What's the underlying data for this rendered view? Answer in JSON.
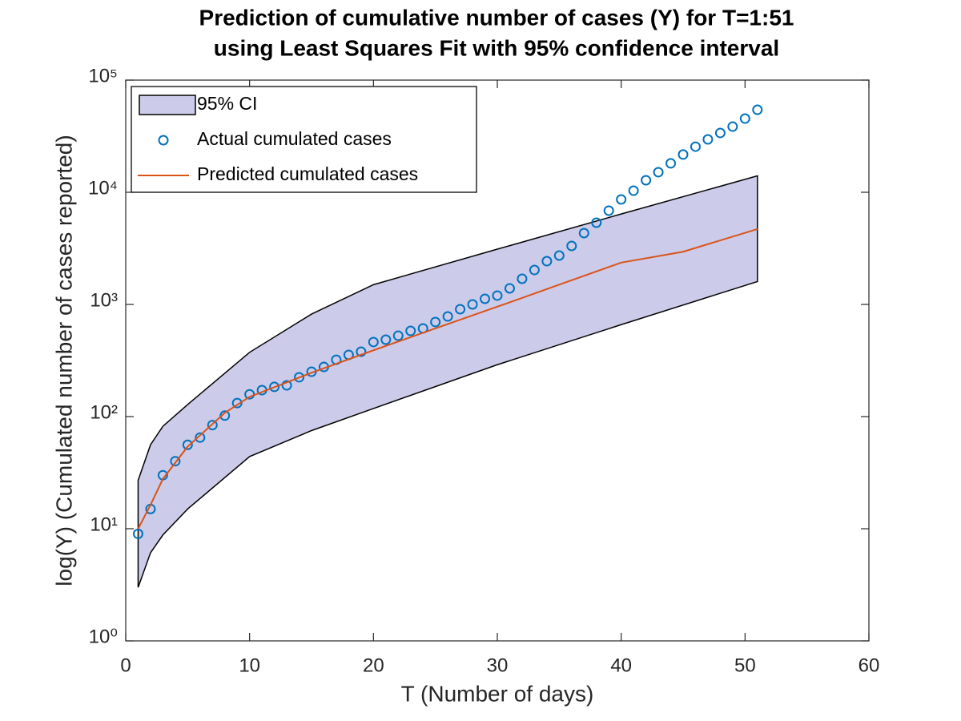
{
  "chart_data": {
    "type": "line",
    "title": [
      "Prediction of cumulative number of cases (Y) for T=1:51",
      "using Least Squares Fit with 95% confidence interval"
    ],
    "xlabel": "T (Number of days)",
    "ylabel": "log(Y) (Cumulated number of cases reported)",
    "xlim": [
      0,
      60
    ],
    "xticks": [
      0,
      10,
      20,
      30,
      40,
      50,
      60
    ],
    "ylim": [
      1,
      100000
    ],
    "yscale": "log",
    "yticks": [
      {
        "value": 1,
        "label": "10⁰"
      },
      {
        "value": 10,
        "label": "10¹"
      },
      {
        "value": 100,
        "label": "10²"
      },
      {
        "value": 1000,
        "label": "10³"
      },
      {
        "value": 10000,
        "label": "10⁴"
      },
      {
        "value": 100000,
        "label": "10⁵"
      }
    ],
    "legend": "upper left",
    "series": [
      {
        "name": "95% CI",
        "kind": "band",
        "color": "#ccccea",
        "x": [
          1,
          2,
          3,
          5,
          10,
          15,
          20,
          30,
          40,
          51
        ],
        "upper": [
          27,
          56,
          82,
          128,
          374,
          820,
          1500,
          3110,
          6400,
          14000
        ],
        "lower": [
          3,
          6.1,
          8.8,
          15,
          44,
          75,
          118,
          290,
          660,
          1600
        ]
      },
      {
        "name": "Actual cumulated cases",
        "kind": "scatter",
        "color": "#0072bd",
        "x": [
          1,
          2,
          3,
          4,
          5,
          6,
          7,
          8,
          9,
          10,
          11,
          12,
          13,
          14,
          15,
          16,
          17,
          18,
          19,
          20,
          21,
          22,
          23,
          24,
          25,
          26,
          27,
          28,
          29,
          30,
          31,
          32,
          33,
          34,
          35,
          36,
          37,
          38,
          39,
          40,
          41,
          42,
          43,
          44,
          45,
          46,
          47,
          48,
          49,
          50,
          51
        ],
        "values": [
          9,
          15,
          30,
          40,
          56,
          65,
          84,
          102,
          132,
          158,
          172,
          184,
          190,
          224,
          251,
          277,
          321,
          355,
          379,
          462,
          485,
          526,
          581,
          611,
          697,
          781,
          906,
          1000,
          1122,
          1199,
          1390,
          1693,
          2028,
          2430,
          2727,
          3322,
          4322,
          5354,
          6852,
          8624,
          10330,
          12800,
          15100,
          18100,
          21700,
          25500,
          29600,
          33800,
          38500,
          45400,
          54400
        ]
      },
      {
        "name": "Predicted cumulated cases",
        "kind": "line",
        "color": "#d95319",
        "x": [
          1,
          2,
          3,
          5,
          8,
          10,
          15,
          20,
          25,
          30,
          35,
          40,
          45,
          51
        ],
        "values": [
          10,
          16.3,
          27.8,
          54,
          108,
          150,
          246,
          390,
          611,
          954,
          1500,
          2360,
          2950,
          4700
        ]
      }
    ]
  }
}
